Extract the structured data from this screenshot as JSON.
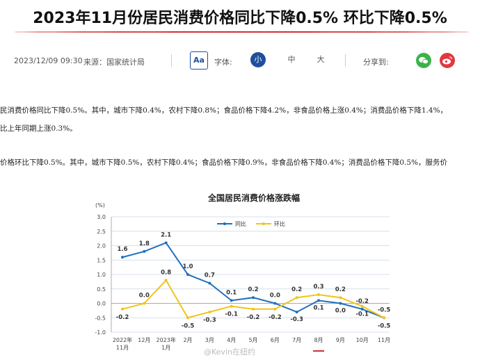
{
  "headline": "2023年11月份居民消费价格同比下降0.5% 环比下降0.5%",
  "meta": {
    "datetime": "2023/12/09 09:30",
    "source": "来源：国家统计局",
    "font_icon": "Aa",
    "font_label": "字体:",
    "sizes": [
      "小",
      "中",
      "大"
    ],
    "share_label": "分享到:",
    "share_icons": [
      "wechat-icon",
      "weibo-icon"
    ]
  },
  "paragraphs": [
    "民消费价格同比下降0.5%。其中，城市下降0.4%，农村下降0.8%；食品价格下降4.2%，非食品价格上涨0.4%；消费品价格下降1.4%，",
    "比上年同期上涨0.3%。",
    "价格环比下降0.5%。其中，城市下降0.5%，农村下降0.4%；食品价格下降0.9%，非食品价格下降0.4%；消费品价格下降0.5%，服务价"
  ],
  "chart_data": {
    "type": "line",
    "title": "全国居民消费价格涨跌幅",
    "ylabel": "(%)",
    "ylim": [
      -1.0,
      3.0
    ],
    "yticks": [
      "3.0",
      "2.5",
      "2.0",
      "1.5",
      "1.0",
      "0.5",
      "0.0",
      "-0.5",
      "-1.0"
    ],
    "categories": [
      [
        "2022年",
        "11月"
      ],
      [
        "12月"
      ],
      [
        "2023年",
        "1月"
      ],
      [
        "2月"
      ],
      [
        "3月"
      ],
      [
        "4月"
      ],
      [
        "5月"
      ],
      [
        "6月"
      ],
      [
        "7月"
      ],
      [
        "8月"
      ],
      [
        "9月"
      ],
      [
        "10月"
      ],
      [
        "11月"
      ]
    ],
    "series": [
      {
        "name": "同比",
        "color": "#1f6fc0",
        "values": [
          1.6,
          1.8,
          2.1,
          1.0,
          0.7,
          0.1,
          0.2,
          0.0,
          -0.3,
          0.1,
          0.0,
          -0.2,
          -0.5
        ],
        "labels": [
          "1.6",
          "1.8",
          "2.1",
          "1.0",
          "0.7",
          "0.1",
          "0.2",
          "0.0",
          "-0.3",
          "0.1",
          "0.0",
          "-0.2",
          "-0.5"
        ]
      },
      {
        "name": "环比",
        "color": "#f0c419",
        "values": [
          -0.2,
          0.0,
          0.8,
          -0.5,
          -0.3,
          -0.1,
          -0.2,
          -0.2,
          0.2,
          0.3,
          0.2,
          -0.1,
          -0.5
        ],
        "labels": [
          "-0.2",
          "0.0",
          "0.8",
          "-0.5",
          "-0.3",
          "-0.1",
          "-0.2",
          "-0.2",
          "0.2",
          "0.3",
          "0.2",
          "-0.1",
          "-0.5"
        ]
      }
    ],
    "highlight_category": "8月",
    "legend": "top"
  },
  "watermark": "@Kevin在纽约",
  "colors": {
    "accent_red": "#d32f2f",
    "accent_blue": "#1e4f9c"
  }
}
